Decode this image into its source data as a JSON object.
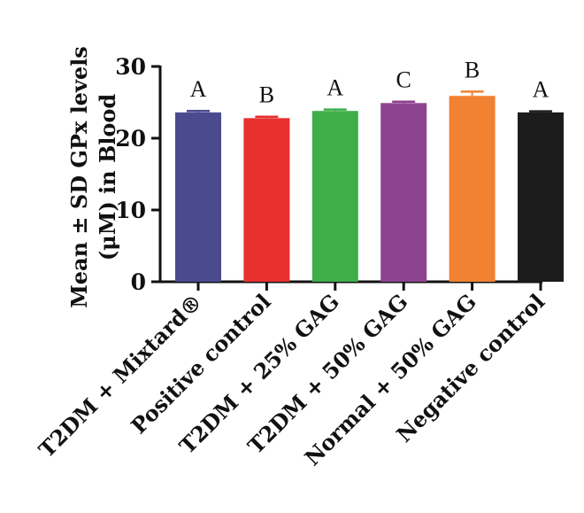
{
  "chart_data": {
    "type": "bar",
    "ylabel_lines": [
      "Mean ± SD GPx levels",
      "(μM) in Blood"
    ],
    "categories": [
      "T2DM + Mixtard®",
      "Positive control",
      "T2DM + 25% GAG",
      "T2DM + 50% GAG",
      "Normal + 50% GAG",
      "Negative control"
    ],
    "values": [
      23.6,
      22.8,
      23.8,
      24.9,
      25.9,
      23.6
    ],
    "errors": [
      0.2,
      0.2,
      0.2,
      0.2,
      0.6,
      0.15
    ],
    "group_letters": [
      "A",
      "B",
      "A",
      "C",
      "B",
      "A"
    ],
    "colors": [
      "#4b4a8f",
      "#e8302f",
      "#3fae49",
      "#8e4391",
      "#f08232",
      "#1c1c1c"
    ],
    "ylim": [
      0,
      30
    ],
    "yticks": [
      "0",
      "10",
      "20",
      "30"
    ],
    "grid": false
  }
}
